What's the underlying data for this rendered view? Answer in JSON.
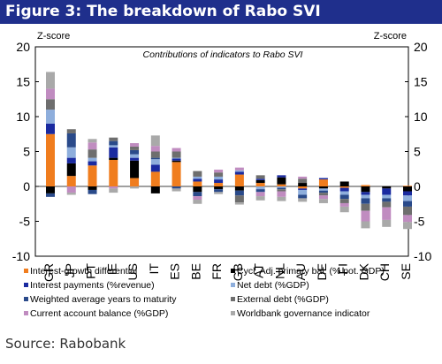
{
  "figure_title": "Figure 3: The breakdown of Rabo SVI",
  "source": "Source: Rabobank",
  "chart_data": {
    "type": "bar",
    "stacked": true,
    "title": "Contributions of indicators to Rabo SVI",
    "ylabel_left": "Z-score",
    "ylabel_right": "Z-score",
    "ylim": [
      -10,
      20
    ],
    "yticks": [
      "-10",
      "-5",
      "0",
      "5",
      "10",
      "15",
      "20"
    ],
    "grid": false,
    "legend_position": "bottom",
    "categories": [
      "GR",
      "JP",
      "PT",
      "IE",
      "US",
      "IT",
      "ES",
      "BE",
      "FR",
      "GB",
      "AT",
      "NL",
      "AU",
      "DE",
      "FI",
      "DK",
      "CH",
      "SE"
    ],
    "series": [
      {
        "name": "Interest-growth differential",
        "color": "#f07d1e",
        "values": [
          7.5,
          1.5,
          3.0,
          3.8,
          1.2,
          2.1,
          3.5,
          0.7,
          0.5,
          1.7,
          0.5,
          0.3,
          -0.3,
          1.0,
          -0.2,
          0.2,
          0.0,
          0.1
        ]
      },
      {
        "name": "Cycl. Adj. primary bal. (% pot. GDP)",
        "color": "#000000",
        "values": [
          -1.0,
          1.8,
          -0.5,
          0.3,
          2.5,
          -1.0,
          0.2,
          -0.8,
          -0.4,
          -0.6,
          0.4,
          1.0,
          0.5,
          -0.3,
          0.7,
          -0.8,
          -0.3,
          -0.7
        ]
      },
      {
        "name": "Interest payments (%revenue)",
        "color": "#1a2aa0",
        "values": [
          1.5,
          0.8,
          0.6,
          1.5,
          0.4,
          1.0,
          0.3,
          0.4,
          0.5,
          0.4,
          0.2,
          0.3,
          -0.2,
          0.2,
          -0.5,
          -0.4,
          -0.9,
          -0.6
        ]
      },
      {
        "name": "Net debt (%GDP)",
        "color": "#8eaedc",
        "values": [
          2.0,
          1.5,
          0.5,
          0.3,
          0.5,
          0.8,
          0.1,
          0.3,
          0.4,
          0.2,
          -0.4,
          -0.2,
          -0.7,
          -0.3,
          -0.5,
          -0.5,
          -0.5,
          -0.8
        ]
      },
      {
        "name": "Weighted average years to maturity",
        "color": "#2a4a8a",
        "values": [
          -0.5,
          2.0,
          -0.6,
          0.6,
          0.6,
          0.2,
          -0.3,
          -0.6,
          -0.4,
          -0.7,
          -0.4,
          -0.2,
          -0.5,
          -0.3,
          -0.6,
          -0.8,
          -0.5,
          -0.8
        ]
      },
      {
        "name": "External debt (%GDP)",
        "color": "#6e6e6e",
        "values": [
          1.5,
          0.6,
          1.2,
          0.5,
          0.5,
          0.9,
          0.9,
          0.8,
          0.6,
          -1.0,
          0.5,
          -0.3,
          0.6,
          -0.4,
          -0.6,
          -1.0,
          -0.8,
          -1.2
        ]
      },
      {
        "name": "Current account balance (%GDP)",
        "color": "#c08cc0",
        "values": [
          1.5,
          -0.9,
          1.0,
          -0.3,
          0.5,
          0.8,
          0.5,
          -0.5,
          0.4,
          0.4,
          -0.6,
          -0.8,
          0.3,
          -0.5,
          -0.5,
          -1.5,
          -1.8,
          -1.0
        ]
      },
      {
        "name": "Worldbank governance indicator",
        "color": "#a9a9a9",
        "values": [
          2.4,
          -0.3,
          0.5,
          -0.6,
          -0.3,
          1.5,
          -0.4,
          -0.6,
          -0.3,
          -0.3,
          -0.6,
          -0.6,
          -0.5,
          -0.6,
          -0.8,
          -1.0,
          -1.0,
          -1.0
        ]
      }
    ]
  }
}
